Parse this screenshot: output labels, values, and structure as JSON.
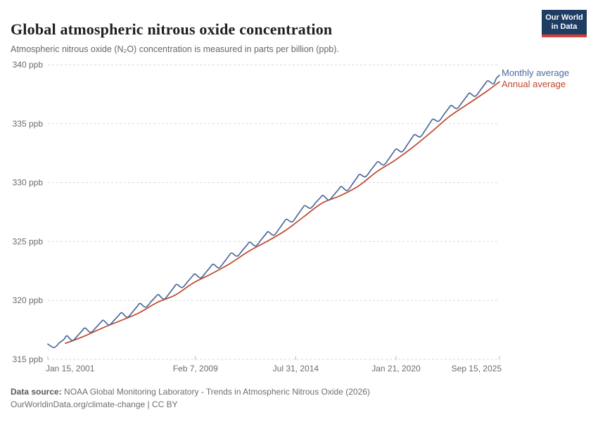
{
  "header": {
    "title": "Global atmospheric nitrous oxide concentration",
    "subtitle": "Atmospheric nitrous oxide (N₂O) concentration is measured in parts per billion (ppb)."
  },
  "logo": {
    "line1": "Our World",
    "line2": "in Data"
  },
  "legend": [
    {
      "label": "Monthly average",
      "color": "#4C6A9C"
    },
    {
      "label": "Annual average",
      "color": "#C0472B"
    }
  ],
  "chart_data": {
    "type": "line",
    "title": "Global atmospheric nitrous oxide concentration",
    "xlabel": "",
    "ylabel": "ppb",
    "unit": "parts per billion (ppb)",
    "grid": "horizontal-dashed",
    "legend_position": "right-of-line-ends",
    "x_range": [
      2001.04,
      2025.71
    ],
    "y_range": [
      315,
      340
    ],
    "yticks": [
      {
        "value": 315,
        "label": "315 ppb"
      },
      {
        "value": 320,
        "label": "320 ppb"
      },
      {
        "value": 325,
        "label": "325 ppb"
      },
      {
        "value": 330,
        "label": "330 ppb"
      },
      {
        "value": 335,
        "label": "335 ppb"
      },
      {
        "value": 340,
        "label": "340 ppb"
      }
    ],
    "xticks": [
      {
        "t": 2001.04,
        "label": "Jan 15, 2001"
      },
      {
        "t": 2009.1,
        "label": "Feb 7, 2009"
      },
      {
        "t": 2014.58,
        "label": "Jul 31, 2014"
      },
      {
        "t": 2020.06,
        "label": "Jan 21, 2020"
      },
      {
        "t": 2025.71,
        "label": "Sep 15, 2025"
      }
    ],
    "series": [
      {
        "name": "Monthly average",
        "color": "#4C6A9C",
        "points": [
          [
            2001.04,
            316.3
          ],
          [
            2001.38,
            316.01
          ],
          [
            2001.67,
            316.41
          ],
          [
            2001.92,
            316.7
          ],
          [
            2002.08,
            317.0
          ],
          [
            2002.38,
            316.6
          ],
          [
            2002.67,
            317.02
          ],
          [
            2002.92,
            317.44
          ],
          [
            2003.08,
            317.66
          ],
          [
            2003.38,
            317.29
          ],
          [
            2003.67,
            317.71
          ],
          [
            2003.92,
            318.12
          ],
          [
            2004.08,
            318.32
          ],
          [
            2004.38,
            317.92
          ],
          [
            2004.67,
            318.34
          ],
          [
            2004.92,
            318.75
          ],
          [
            2005.08,
            318.96
          ],
          [
            2005.38,
            318.57
          ],
          [
            2005.67,
            319.03
          ],
          [
            2005.92,
            319.5
          ],
          [
            2006.08,
            319.75
          ],
          [
            2006.38,
            319.43
          ],
          [
            2006.67,
            319.88
          ],
          [
            2006.92,
            320.29
          ],
          [
            2007.08,
            320.49
          ],
          [
            2007.38,
            320.1
          ],
          [
            2007.67,
            320.59
          ],
          [
            2007.92,
            321.1
          ],
          [
            2008.08,
            321.36
          ],
          [
            2008.38,
            321.1
          ],
          [
            2008.67,
            321.58
          ],
          [
            2008.92,
            322.03
          ],
          [
            2009.08,
            322.25
          ],
          [
            2009.38,
            321.91
          ],
          [
            2009.67,
            322.38
          ],
          [
            2009.92,
            322.84
          ],
          [
            2010.08,
            323.08
          ],
          [
            2010.38,
            322.76
          ],
          [
            2010.67,
            323.26
          ],
          [
            2010.92,
            323.77
          ],
          [
            2011.08,
            324.03
          ],
          [
            2011.38,
            323.76
          ],
          [
            2011.67,
            324.25
          ],
          [
            2011.92,
            324.71
          ],
          [
            2012.08,
            324.95
          ],
          [
            2012.38,
            324.62
          ],
          [
            2012.67,
            325.11
          ],
          [
            2012.92,
            325.59
          ],
          [
            2013.08,
            325.83
          ],
          [
            2013.38,
            325.53
          ],
          [
            2013.67,
            326.07
          ],
          [
            2013.92,
            326.61
          ],
          [
            2014.08,
            326.89
          ],
          [
            2014.38,
            326.66
          ],
          [
            2014.67,
            327.23
          ],
          [
            2014.92,
            327.77
          ],
          [
            2015.08,
            328.05
          ],
          [
            2015.38,
            327.82
          ],
          [
            2015.67,
            328.3
          ],
          [
            2015.92,
            328.71
          ],
          [
            2016.08,
            328.91
          ],
          [
            2016.38,
            328.52
          ],
          [
            2016.67,
            328.97
          ],
          [
            2016.92,
            329.42
          ],
          [
            2017.08,
            329.66
          ],
          [
            2017.38,
            329.32
          ],
          [
            2017.67,
            329.86
          ],
          [
            2017.92,
            330.41
          ],
          [
            2018.08,
            330.7
          ],
          [
            2018.38,
            330.49
          ],
          [
            2018.67,
            331.03
          ],
          [
            2018.92,
            331.52
          ],
          [
            2019.08,
            331.78
          ],
          [
            2019.38,
            331.49
          ],
          [
            2019.67,
            332.03
          ],
          [
            2019.92,
            332.57
          ],
          [
            2020.08,
            332.85
          ],
          [
            2020.38,
            332.61
          ],
          [
            2020.67,
            333.2
          ],
          [
            2020.92,
            333.77
          ],
          [
            2021.08,
            334.07
          ],
          [
            2021.38,
            333.88
          ],
          [
            2021.67,
            334.49
          ],
          [
            2021.92,
            335.07
          ],
          [
            2022.08,
            335.38
          ],
          [
            2022.38,
            335.2
          ],
          [
            2022.67,
            335.77
          ],
          [
            2022.92,
            336.28
          ],
          [
            2023.08,
            336.54
          ],
          [
            2023.38,
            336.28
          ],
          [
            2023.67,
            336.81
          ],
          [
            2023.92,
            337.32
          ],
          [
            2024.08,
            337.59
          ],
          [
            2024.38,
            337.32
          ],
          [
            2024.67,
            337.86
          ],
          [
            2024.92,
            338.37
          ],
          [
            2025.08,
            338.64
          ],
          [
            2025.38,
            338.37
          ],
          [
            2025.54,
            338.85
          ],
          [
            2025.71,
            339.1
          ]
        ]
      },
      {
        "name": "Annual average",
        "color": "#C0472B",
        "points": [
          [
            2002.0,
            316.36
          ],
          [
            2003.0,
            316.95
          ],
          [
            2004.0,
            317.65
          ],
          [
            2005.0,
            318.28
          ],
          [
            2006.0,
            318.93
          ],
          [
            2007.0,
            319.82
          ],
          [
            2008.0,
            320.46
          ],
          [
            2009.0,
            321.5
          ],
          [
            2010.0,
            322.28
          ],
          [
            2011.0,
            323.14
          ],
          [
            2012.0,
            324.16
          ],
          [
            2013.0,
            325.0
          ],
          [
            2014.0,
            325.92
          ],
          [
            2015.0,
            327.08
          ],
          [
            2016.0,
            328.24
          ],
          [
            2017.0,
            328.88
          ],
          [
            2018.0,
            329.7
          ],
          [
            2019.0,
            330.91
          ],
          [
            2020.0,
            331.89
          ],
          [
            2021.0,
            333.03
          ],
          [
            2022.0,
            334.31
          ],
          [
            2023.0,
            335.64
          ],
          [
            2024.0,
            336.68
          ],
          [
            2025.0,
            337.73
          ],
          [
            2025.71,
            338.55
          ]
        ]
      }
    ]
  },
  "footer": {
    "source_label": "Data source:",
    "source_text": "NOAA Global Monitoring Laboratory - Trends in Atmospheric Nitrous Oxide (2026)",
    "link": "OurWorldinData.org/climate-change",
    "separator": " | ",
    "license": "CC BY"
  }
}
